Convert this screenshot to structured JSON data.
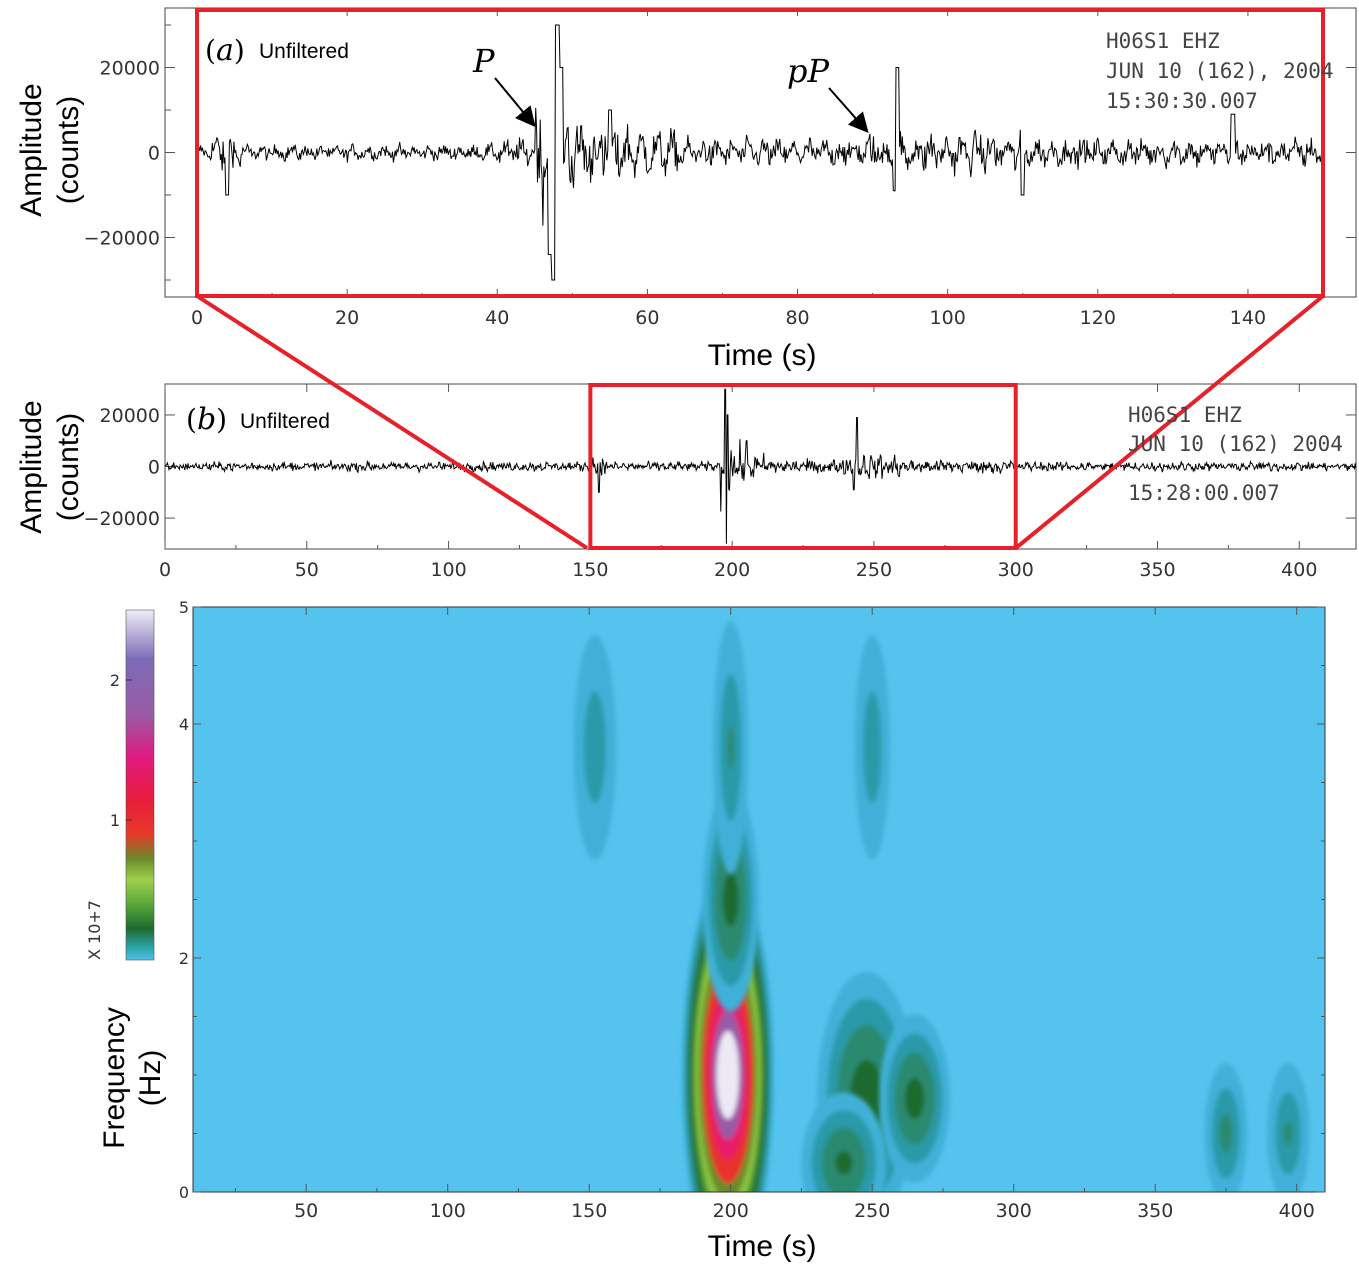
{
  "chart_data": [
    {
      "type": "line",
      "panel": "a",
      "title": "Unfiltered",
      "xlabel": "Time (s)",
      "ylabel": "Amplitude (counts)",
      "xlim": [
        0,
        150
      ],
      "ylim": [
        -34000,
        34000
      ],
      "xticks": [
        0,
        20,
        40,
        60,
        80,
        100,
        120,
        140
      ],
      "yticks": [
        20000,
        0,
        -20000
      ],
      "ytick_labels": [
        "20000",
        "0",
        "−20000"
      ],
      "station": [
        "H06S1   EHZ",
        "JUN 10 (162), 2004",
        "15:30:30.007"
      ],
      "annotations": [
        {
          "text": "P",
          "x": 45.5,
          "y": 6000
        },
        {
          "text": "pP",
          "x": 89.5,
          "y": 5000
        }
      ],
      "highlight_box": {
        "x": [
          0,
          150
        ],
        "color": "#e8202a"
      },
      "series": [
        {
          "x": [
            0,
            3.5,
            4,
            25,
            40,
            45.5,
            47,
            47.5,
            48,
            48.5,
            55,
            60,
            75,
            89.5,
            93,
            93.3,
            110,
            138,
            145,
            150
          ],
          "y": [
            0,
            8000,
            -10000,
            0,
            -5000,
            6000,
            -24000,
            -30000,
            30000,
            20000,
            10000,
            -6000,
            0,
            5000,
            -9000,
            20000,
            -10000,
            9000,
            -8000,
            0
          ]
        }
      ]
    },
    {
      "type": "line",
      "panel": "b",
      "title": "Unfiltered",
      "xlim": [
        0,
        420
      ],
      "ylim": [
        -32000,
        32000
      ],
      "xticks": [
        0,
        50,
        100,
        150,
        200,
        250,
        300,
        350,
        400
      ],
      "yticks": [
        20000,
        0,
        -20000
      ],
      "ytick_labels": [
        "20000",
        "0",
        "−20000"
      ],
      "station": [
        "H06S1   EHZ",
        "JUN 10 (162)  2004",
        "15:28:00.007"
      ],
      "highlight_box": {
        "x": [
          150,
          300
        ],
        "color": "#e8202a"
      },
      "series": [
        {
          "x": [
            0,
            150,
            153,
            196,
            197.5,
            198,
            198.5,
            205,
            243,
            244,
            300,
            410,
            420
          ],
          "y": [
            0,
            0,
            -10000,
            0,
            30000,
            -30000,
            20000,
            10000,
            -9000,
            19000,
            0,
            -5000,
            0
          ]
        }
      ]
    },
    {
      "type": "heatmap",
      "panel": "spectrogram",
      "xlabel": "Time (s)",
      "ylabel": "Frequency (Hz)",
      "xlim": [
        10,
        410
      ],
      "ylim": [
        0,
        5
      ],
      "xticks": [
        50,
        100,
        150,
        200,
        250,
        300,
        350,
        400
      ],
      "yticks": [
        0,
        2,
        4,
        5
      ],
      "colorbar": {
        "ticks": [
          1,
          2
        ],
        "label": "X 10+7",
        "range": [
          0,
          2.5
        ]
      },
      "peaks": [
        {
          "t": 199,
          "f": 1.0,
          "value": 2.5
        },
        {
          "t": 200,
          "f": 2.5,
          "value": 0.55
        },
        {
          "t": 248,
          "f": 0.8,
          "value": 0.6
        },
        {
          "t": 265,
          "f": 0.8,
          "value": 0.55
        },
        {
          "t": 240,
          "f": 0.25,
          "value": 0.5
        },
        {
          "t": 152,
          "f": 3.8,
          "value": 0.25
        },
        {
          "t": 200,
          "f": 3.8,
          "value": 0.3
        },
        {
          "t": 250,
          "f": 3.8,
          "value": 0.25
        },
        {
          "t": 375,
          "f": 0.5,
          "value": 0.35
        },
        {
          "t": 397,
          "f": 0.5,
          "value": 0.3
        }
      ]
    }
  ]
}
